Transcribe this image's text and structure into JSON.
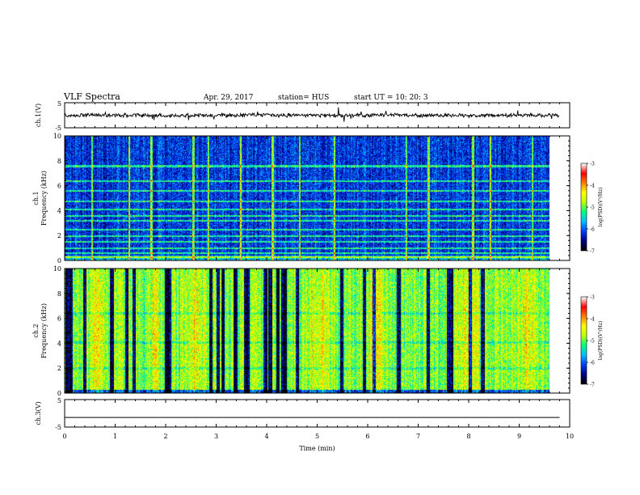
{
  "header": {
    "title": "VLF Spectra",
    "date": "Apr. 29, 2017",
    "station": "station= HUS",
    "start": "start  UT =   10: 20: 3"
  },
  "colors": {
    "background": "#ffffff",
    "axis": "#000000",
    "colormap": [
      "#000000",
      "#00008b",
      "#0040ff",
      "#00c0ff",
      "#00ff80",
      "#c0ff00",
      "#ffff00",
      "#ff8000",
      "#ff0000",
      "#ffffff"
    ]
  },
  "chart_data": [
    {
      "type": "line",
      "id": "ch1-waveform",
      "ylabel": "ch.1(V)",
      "ylim": [
        -5,
        5
      ],
      "yticks": [
        "5",
        "-5"
      ],
      "xlim": [
        0,
        10
      ],
      "trace_level": 0,
      "trace_extent": [
        0,
        9.8
      ],
      "trace_color": "#000000"
    },
    {
      "type": "heatmap",
      "id": "ch1-spectrogram",
      "ylabel_line1": "ch.1",
      "ylabel_line2": "Frequency (kHz)",
      "ylim": [
        0,
        10
      ],
      "yticks": [
        "0",
        "2",
        "4",
        "6",
        "8",
        "10"
      ],
      "xlim": [
        0,
        10
      ],
      "data_extent_min": 9.8,
      "colorbar": {
        "label": "log(PSD)(V²/Hz)",
        "range": [
          -7,
          -3
        ],
        "ticks": [
          "-3",
          "-4",
          "-5",
          "-6",
          "-7"
        ]
      },
      "dominant_log_psd": -6.2,
      "bright_lines_khz": [
        0.3,
        0.6,
        1.0,
        1.5,
        2.0,
        2.5,
        3.2,
        3.6,
        4.1,
        4.8,
        5.6,
        6.4,
        7.6
      ],
      "bright_bursts_min": [
        0.55,
        1.3,
        1.75,
        2.6,
        2.9,
        3.55,
        4.2,
        4.75,
        5.45,
        6.9,
        7.35,
        8.25,
        8.6,
        9.45
      ]
    },
    {
      "type": "heatmap",
      "id": "ch2-spectrogram",
      "ylabel_line1": "ch.2",
      "ylabel_line2": "Frequency (kHz)",
      "ylim": [
        0,
        10
      ],
      "yticks": [
        "0",
        "2",
        "4",
        "6",
        "8",
        "10"
      ],
      "xlim": [
        0,
        10
      ],
      "data_extent_min": 9.8,
      "colorbar": {
        "label": "log(PSD)(V²/Hz)",
        "range": [
          -7,
          -3
        ],
        "ticks": [
          "-3",
          "-4",
          "-5",
          "-6",
          "-7"
        ]
      },
      "dominant_log_psd": -4.9,
      "dark_bands_min": [
        0.05,
        0.12,
        0.4,
        0.95,
        1.25,
        1.4,
        2.05,
        2.12,
        2.95,
        3.1,
        3.2,
        3.45,
        3.65,
        3.7,
        4.05,
        4.15,
        4.3,
        4.4,
        4.45,
        4.7,
        5.6,
        6.05,
        6.25,
        6.75,
        7.35,
        7.75,
        7.82,
        8.2,
        8.45
      ],
      "active_spans_min": [
        [
          0.4,
          0.9
        ],
        [
          1.6,
          2.0
        ],
        [
          2.3,
          2.9
        ],
        [
          4.8,
          5.5
        ],
        [
          6.0,
          6.6
        ],
        [
          7.8,
          8.5
        ],
        [
          9.0,
          9.7
        ]
      ]
    },
    {
      "type": "line",
      "id": "ch3-waveform",
      "ylabel": "ch.3(V)",
      "ylim": [
        -5,
        5
      ],
      "yticks": [
        "5",
        "-5"
      ],
      "xlim": [
        0,
        10
      ],
      "xlabel": "Time (min)",
      "xticks": [
        "0",
        "1",
        "2",
        "3",
        "4",
        "5",
        "6",
        "7",
        "8",
        "9",
        "10"
      ],
      "trace_level": -1.5,
      "trace_extent": [
        0,
        9.8
      ],
      "trace_color": "#000000"
    }
  ]
}
